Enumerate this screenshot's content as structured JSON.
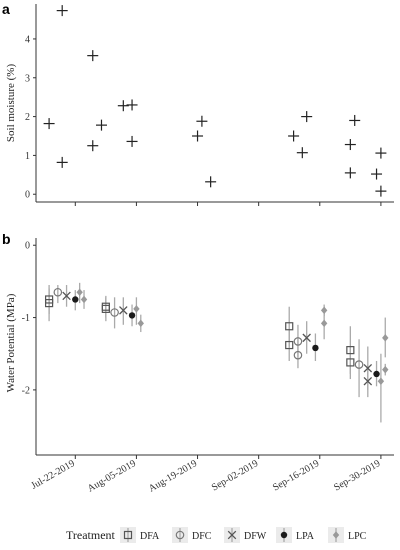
{
  "chart_data": [
    {
      "panel": "a",
      "type": "scatter",
      "ylabel": "Soil moisture (%)",
      "ylim": [
        -0.2,
        4.9
      ],
      "yticks": [
        0,
        1,
        2,
        3,
        4
      ],
      "marker": "plus",
      "x_time_axis": "shared with panel b",
      "points": [
        {
          "x": "2019-07-16",
          "y": 1.82
        },
        {
          "x": "2019-07-19",
          "y": 4.73
        },
        {
          "x": "2019-07-19",
          "y": 0.82
        },
        {
          "x": "2019-07-26",
          "y": 3.57
        },
        {
          "x": "2019-07-26",
          "y": 1.25
        },
        {
          "x": "2019-07-28",
          "y": 1.78
        },
        {
          "x": "2019-08-02",
          "y": 2.28
        },
        {
          "x": "2019-08-04",
          "y": 2.3
        },
        {
          "x": "2019-08-04",
          "y": 1.36
        },
        {
          "x": "2019-08-19",
          "y": 1.5
        },
        {
          "x": "2019-08-20",
          "y": 1.88
        },
        {
          "x": "2019-08-22",
          "y": 0.32
        },
        {
          "x": "2019-09-10",
          "y": 1.5
        },
        {
          "x": "2019-09-12",
          "y": 1.07
        },
        {
          "x": "2019-09-13",
          "y": 2.0
        },
        {
          "x": "2019-09-23",
          "y": 1.28
        },
        {
          "x": "2019-09-23",
          "y": 0.55
        },
        {
          "x": "2019-09-24",
          "y": 1.9
        },
        {
          "x": "2019-09-29",
          "y": 0.52
        },
        {
          "x": "2019-09-30",
          "y": 0.08
        },
        {
          "x": "2019-09-30",
          "y": 1.06
        }
      ]
    },
    {
      "panel": "b",
      "type": "scatter",
      "ylabel": "Water Potential (MPa)",
      "ylim": [
        -2.9,
        0.1
      ],
      "yticks": [
        0,
        -1,
        -2
      ],
      "x_tick_labels": [
        "Jul-22-2019",
        "Aug-05-2019",
        "Aug-19-2019",
        "Sep-02-2019",
        "Sep-16-2019",
        "Sep-30-2019"
      ],
      "x_tick_dates": [
        "2019-07-22",
        "2019-08-05",
        "2019-08-19",
        "2019-09-02",
        "2019-09-16",
        "2019-09-30"
      ],
      "xlim": [
        "2019-07-13",
        "2019-10-03"
      ],
      "error_bars": true,
      "series": [
        {
          "name": "DFA",
          "marker": "open-square",
          "color": "#555555",
          "points": [
            {
              "x": "2019-07-16",
              "y": -0.8,
              "low": -1.05,
              "high": -0.55
            },
            {
              "x": "2019-07-16",
              "y": -0.75,
              "low": -0.95,
              "high": -0.6
            },
            {
              "x": "2019-07-29",
              "y": -0.88,
              "low": -1.05,
              "high": -0.72
            },
            {
              "x": "2019-07-29",
              "y": -0.85,
              "low": -1.0,
              "high": -0.7
            },
            {
              "x": "2019-09-09",
              "y": -1.38,
              "low": -1.6,
              "high": -1.18
            },
            {
              "x": "2019-09-09",
              "y": -1.12,
              "low": -1.4,
              "high": -0.85
            },
            {
              "x": "2019-09-23",
              "y": -1.62,
              "low": -1.85,
              "high": -1.4
            },
            {
              "x": "2019-09-23",
              "y": -1.45,
              "low": -1.78,
              "high": -1.12
            }
          ]
        },
        {
          "name": "DFC",
          "marker": "open-circle",
          "color": "#777777",
          "points": [
            {
              "x": "2019-07-18",
              "y": -0.65,
              "low": -0.8,
              "high": -0.55
            },
            {
              "x": "2019-07-31",
              "y": -0.93,
              "low": -1.15,
              "high": -0.72
            },
            {
              "x": "2019-09-11",
              "y": -1.52,
              "low": -1.7,
              "high": -1.3
            },
            {
              "x": "2019-09-11",
              "y": -1.33,
              "low": -1.55,
              "high": -1.1
            },
            {
              "x": "2019-09-25",
              "y": -1.65,
              "low": -2.1,
              "high": -1.3
            }
          ]
        },
        {
          "name": "DFW",
          "marker": "x",
          "color": "#555555",
          "points": [
            {
              "x": "2019-07-20",
              "y": -0.7,
              "low": -0.85,
              "high": -0.55
            },
            {
              "x": "2019-08-02",
              "y": -0.9,
              "low": -1.1,
              "high": -0.72
            },
            {
              "x": "2019-09-13",
              "y": -1.28,
              "low": -1.5,
              "high": -1.05
            },
            {
              "x": "2019-09-27",
              "y": -1.88,
              "low": -2.1,
              "high": -1.65
            },
            {
              "x": "2019-09-27",
              "y": -1.7,
              "low": -2.0,
              "high": -1.4
            }
          ]
        },
        {
          "name": "LPA",
          "marker": "filled-circle",
          "color": "#1a1a1a",
          "points": [
            {
              "x": "2019-07-22",
              "y": -0.75,
              "low": -0.9,
              "high": -0.62
            },
            {
              "x": "2019-08-04",
              "y": -0.97,
              "low": -1.12,
              "high": -0.82
            },
            {
              "x": "2019-09-15",
              "y": -1.42,
              "low": -1.6,
              "high": -1.22
            },
            {
              "x": "2019-09-29",
              "y": -1.78,
              "low": -1.95,
              "high": -1.6
            }
          ]
        },
        {
          "name": "LPC",
          "marker": "filled-diamond",
          "color": "#999999",
          "points": [
            {
              "x": "2019-07-23",
              "y": -0.65,
              "low": -0.8,
              "high": -0.52
            },
            {
              "x": "2019-07-24",
              "y": -0.75,
              "low": -0.88,
              "high": -0.62
            },
            {
              "x": "2019-08-05",
              "y": -0.88,
              "low": -1.1,
              "high": -0.72
            },
            {
              "x": "2019-08-06",
              "y": -1.08,
              "low": -1.2,
              "high": -0.96
            },
            {
              "x": "2019-09-17",
              "y": -1.08,
              "low": -1.3,
              "high": -0.85
            },
            {
              "x": "2019-09-17",
              "y": -0.9,
              "low": -0.98,
              "high": -0.82
            },
            {
              "x": "2019-09-30",
              "y": -1.88,
              "low": -2.45,
              "high": -1.5
            },
            {
              "x": "2019-10-01",
              "y": -1.28,
              "low": -1.55,
              "high": -1.0
            },
            {
              "x": "2019-10-01",
              "y": -1.72,
              "low": -1.8,
              "high": -1.64
            }
          ]
        }
      ]
    }
  ],
  "legend": {
    "title": "Treatment",
    "placement": "bottom",
    "items": [
      {
        "label": "DFA",
        "marker": "open-square"
      },
      {
        "label": "DFC",
        "marker": "open-circle"
      },
      {
        "label": "DFW",
        "marker": "x"
      },
      {
        "label": "LPA",
        "marker": "filled-circle"
      },
      {
        "label": "LPC",
        "marker": "filled-diamond"
      }
    ]
  },
  "colors": {
    "DFA": "#555555",
    "DFC": "#777777",
    "DFW": "#555555",
    "LPA": "#1a1a1a",
    "LPC": "#999999",
    "legend_key_bg": "#ebebeb",
    "axis": "#333333",
    "errorbar": "#aaaaaa"
  }
}
